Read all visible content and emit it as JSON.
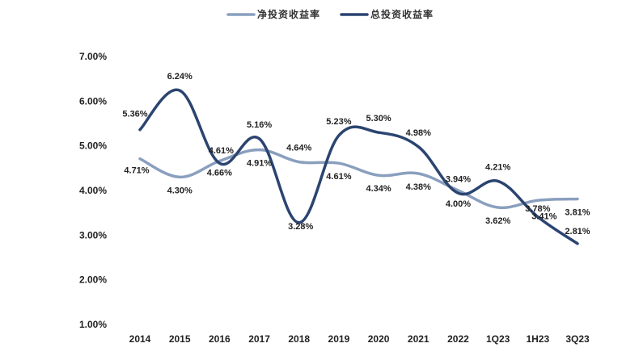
{
  "chart_data": {
    "type": "line",
    "title": "",
    "xlabel": "",
    "ylabel": "",
    "categories": [
      "2014",
      "2015",
      "2016",
      "2017",
      "2018",
      "2019",
      "2020",
      "2021",
      "2022",
      "1Q23",
      "1H23",
      "3Q23"
    ],
    "y_ticks": [
      "1.00%",
      "2.00%",
      "3.00%",
      "4.00%",
      "5.00%",
      "6.00%",
      "7.00%"
    ],
    "ylim": [
      1.0,
      7.0
    ],
    "grid": false,
    "legend_position": "top",
    "series": [
      {
        "name": "净投资收益率",
        "color": "#8a9fbe",
        "values": [
          4.71,
          4.3,
          4.66,
          4.91,
          4.64,
          4.61,
          4.34,
          4.38,
          4.0,
          3.62,
          3.78,
          3.81
        ],
        "labels": [
          "4.71%",
          "4.30%",
          "4.66%",
          "4.91%",
          "4.64%",
          "4.61%",
          "4.34%",
          "4.38%",
          "4.00%",
          "3.62%",
          "3.78%",
          "3.81%"
        ]
      },
      {
        "name": "总投资收益率",
        "color": "#2b4470",
        "values": [
          5.36,
          6.24,
          4.61,
          5.16,
          3.28,
          5.23,
          5.3,
          4.98,
          3.94,
          4.21,
          3.41,
          2.81
        ],
        "labels": [
          "5.36%",
          "6.24%",
          "4.61%",
          "5.16%",
          "3.28%",
          "5.23%",
          "5.30%",
          "4.98%",
          "3.94%",
          "4.21%",
          "3.41%",
          "2.81%"
        ]
      }
    ]
  }
}
